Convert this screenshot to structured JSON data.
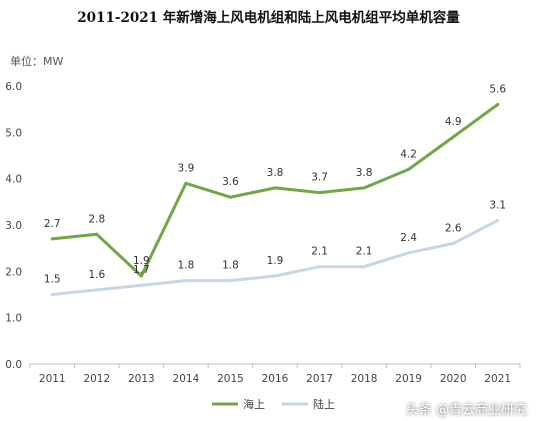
{
  "page": {
    "title": "2011-2021 年新增海上风电机组和陆上风电机组平均单机容量",
    "unit_label": "单位：MW",
    "watermark": "头条 @青云商业研究"
  },
  "chart_data": {
    "type": "line",
    "title": "2011-2021 年新增海上风电机组和陆上风电机组平均单机容量",
    "ylabel": "单位：MW",
    "x": [
      "2011",
      "2012",
      "2013",
      "2014",
      "2015",
      "2016",
      "2017",
      "2018",
      "2019",
      "2020",
      "2021"
    ],
    "ylim": [
      0,
      6
    ],
    "yticks": [
      "0.0",
      "1.0",
      "2.0",
      "3.0",
      "4.0",
      "5.0",
      "6.0"
    ],
    "grid": false,
    "legend_position": "bottom-center",
    "series": [
      {
        "name": "海上",
        "color": "#70a845",
        "values": [
          2.7,
          2.8,
          1.9,
          3.9,
          3.6,
          3.8,
          3.7,
          3.8,
          4.2,
          4.9,
          5.6
        ],
        "labels": [
          "2.7",
          "2.8",
          "1.9",
          "3.9",
          "3.6",
          "3.8",
          "3.7",
          "3.8",
          "4.2",
          "4.9",
          "5.6"
        ]
      },
      {
        "name": "陆上",
        "color": "#c6d6e8",
        "values": [
          1.5,
          1.6,
          1.7,
          1.8,
          1.8,
          1.9,
          2.1,
          2.1,
          2.4,
          2.6,
          3.1
        ],
        "labels": [
          "1.5",
          "1.6",
          "1.7",
          "1.8",
          "1.8",
          "1.9",
          "2.1",
          "2.1",
          "2.4",
          "2.6",
          "3.1"
        ]
      }
    ]
  }
}
